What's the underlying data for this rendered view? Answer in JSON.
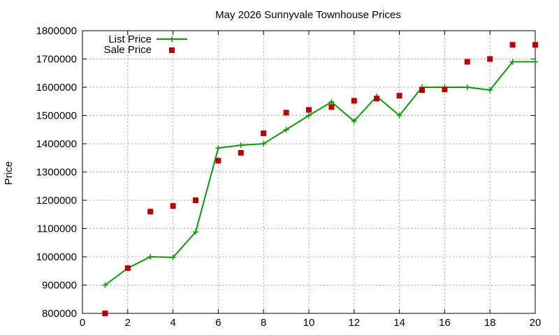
{
  "chart_data": {
    "type": "line",
    "title": "May 2026 Sunnyvale Townhouse Prices",
    "xlabel": "",
    "ylabel": "Price",
    "xlim": [
      0,
      20
    ],
    "ylim": [
      800000,
      1800000
    ],
    "xticks": [
      "0",
      "2",
      "4",
      "6",
      "8",
      "10",
      "12",
      "14",
      "16",
      "18",
      "20"
    ],
    "yticks": [
      "800000",
      "900000",
      "1000000",
      "1100000",
      "1200000",
      "1300000",
      "1400000",
      "1500000",
      "1600000",
      "1700000",
      "1800000"
    ],
    "grid": true,
    "legend_position": "top-left",
    "series": [
      {
        "name": "List Price",
        "style": "line+cross",
        "color": "#00a000",
        "x": [
          1,
          2,
          3,
          4,
          5,
          6,
          7,
          8,
          9,
          10,
          11,
          12,
          13,
          14,
          15,
          16,
          17,
          18,
          19,
          20
        ],
        "y": [
          900000,
          960000,
          1000000,
          998000,
          1088000,
          1385000,
          1395000,
          1400000,
          1450000,
          1500000,
          1548000,
          1480000,
          1568000,
          1500000,
          1600000,
          1600000,
          1600000,
          1590000,
          1690000,
          1690000
        ]
      },
      {
        "name": "Sale Price",
        "style": "square",
        "color": "#c00000",
        "x": [
          1,
          2,
          3,
          4,
          5,
          6,
          7,
          8,
          9,
          10,
          11,
          12,
          13,
          14,
          15,
          16,
          17,
          18,
          19,
          20
        ],
        "y": [
          800000,
          960000,
          1160000,
          1180000,
          1200000,
          1340000,
          1368000,
          1437000,
          1510000,
          1520000,
          1530000,
          1552000,
          1560000,
          1570000,
          1590000,
          1592000,
          1690000,
          1700000,
          1750000,
          1750000
        ]
      }
    ]
  }
}
